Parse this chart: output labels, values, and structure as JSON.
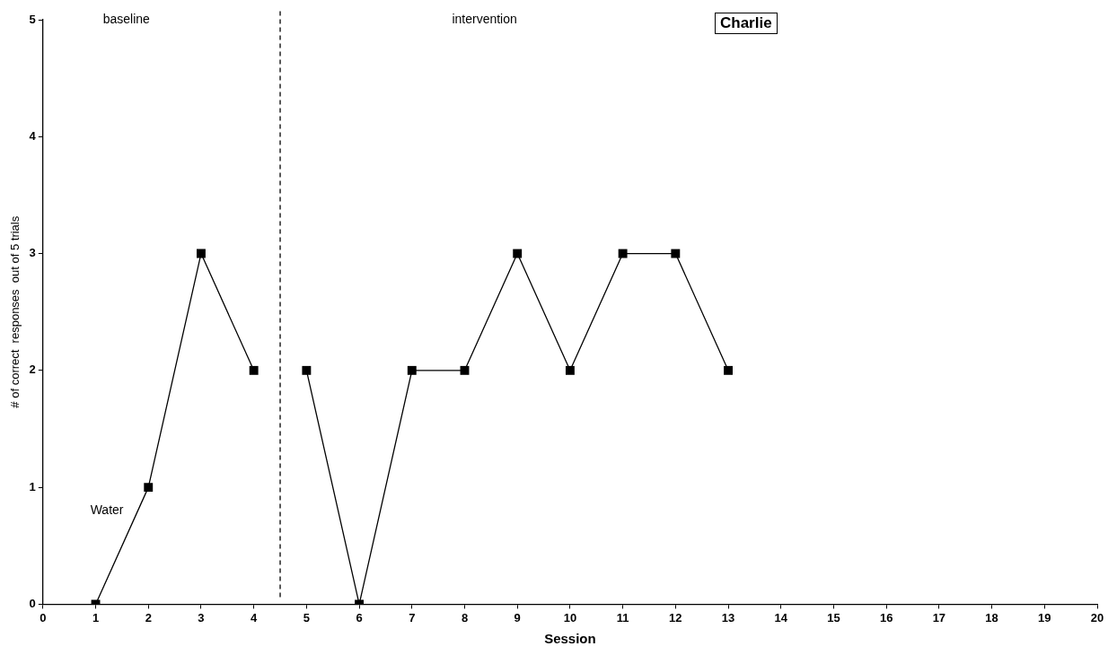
{
  "chart_data": {
    "type": "line",
    "title": "Charlie",
    "xlabel": "Session",
    "ylabel": "# of correct  responses  out of 5 trials",
    "series": [
      {
        "color": "#000000",
        "x": [
          1,
          2,
          3,
          4
        ],
        "values": [
          0,
          1,
          3,
          2
        ]
      },
      {
        "color": "#000000",
        "x": [
          5,
          6,
          7,
          8,
          9,
          10,
          11,
          12,
          13
        ],
        "values": [
          2,
          0,
          2,
          2,
          3,
          2,
          3,
          3,
          2
        ]
      }
    ],
    "xlim": [
      0,
      20
    ],
    "xticks": [
      0,
      1,
      2,
      3,
      4,
      5,
      6,
      7,
      8,
      9,
      10,
      11,
      12,
      13,
      14,
      15,
      16,
      17,
      18,
      19,
      20
    ],
    "ylim": [
      0,
      5
    ],
    "yticks": [
      0,
      1,
      2,
      3,
      4,
      5
    ],
    "ref_lines": [
      {
        "axis": "x",
        "value": 4.5,
        "line_style": "dashed",
        "color": "#000000"
      }
    ],
    "annotations": [
      "baseline",
      "intervention",
      "Water"
    ],
    "grid": false,
    "legend": false,
    "marker": "square",
    "line_style": "solid"
  }
}
